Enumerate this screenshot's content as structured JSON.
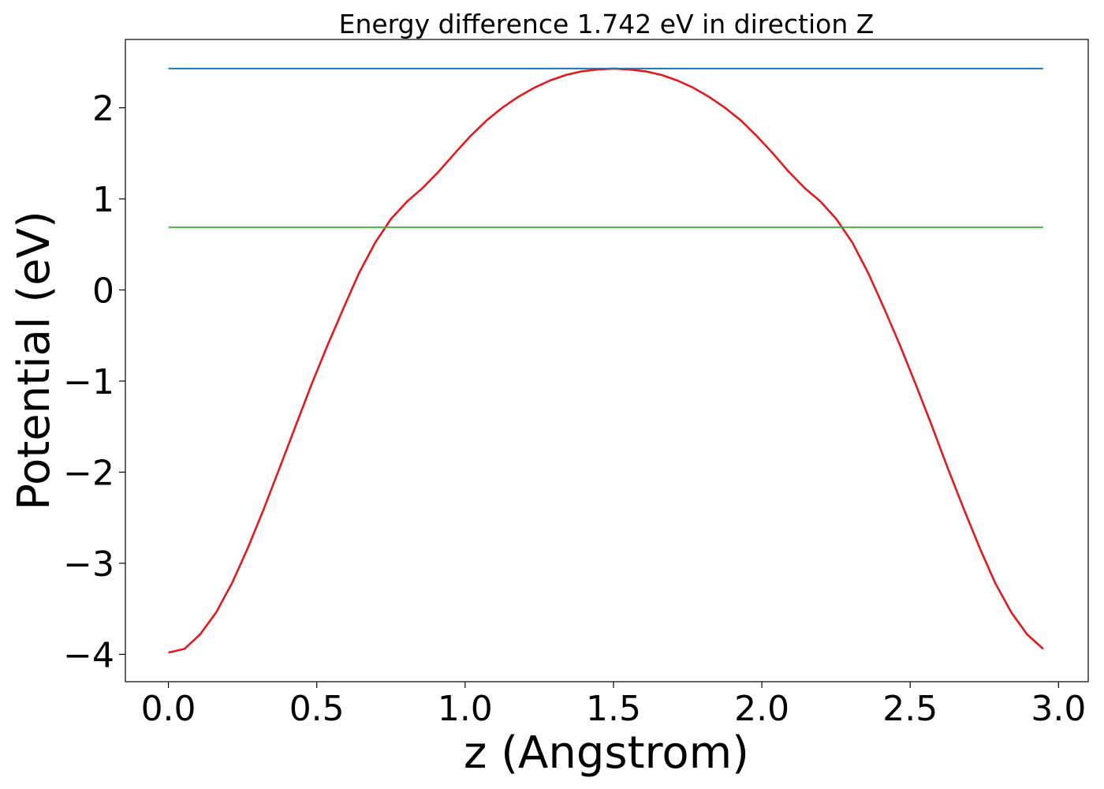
{
  "chart_data": {
    "type": "line",
    "title": "Energy difference 1.742 eV in direction Z",
    "xlabel": "z (Angstrom)",
    "ylabel": "Potential (eV)",
    "xlim": [
      -0.145,
      3.1
    ],
    "ylim": [
      -4.3,
      2.75
    ],
    "xticks": [
      0.0,
      0.5,
      1.0,
      1.5,
      2.0,
      2.5,
      3.0
    ],
    "xtick_labels": [
      "0.0",
      "0.5",
      "1.0",
      "1.5",
      "2.0",
      "2.5",
      "3.0"
    ],
    "yticks": [
      -4,
      -3,
      -2,
      -1,
      0,
      1,
      2
    ],
    "ytick_labels": [
      "−4",
      "−3",
      "−2",
      "−1",
      "0",
      "1",
      "2"
    ],
    "grid": false,
    "series": [
      {
        "color": "#e31a1c",
        "x": [
          0.0,
          0.054,
          0.107,
          0.161,
          0.214,
          0.268,
          0.322,
          0.375,
          0.429,
          0.482,
          0.536,
          0.59,
          0.643,
          0.697,
          0.75,
          0.804,
          0.857,
          0.911,
          0.965,
          1.018,
          1.072,
          1.125,
          1.179,
          1.233,
          1.286,
          1.34,
          1.393,
          1.447,
          1.501,
          1.554,
          1.608,
          1.662,
          1.715,
          1.769,
          1.822,
          1.876,
          1.93,
          1.983,
          2.037,
          2.09,
          2.144,
          2.198,
          2.251,
          2.305,
          2.358,
          2.412,
          2.466,
          2.519,
          2.573,
          2.626,
          2.68,
          2.734,
          2.787,
          2.841,
          2.894,
          2.948
        ],
        "y": [
          -3.98,
          -3.94,
          -3.78,
          -3.54,
          -3.22,
          -2.83,
          -2.4,
          -1.95,
          -1.49,
          -1.04,
          -0.61,
          -0.2,
          0.19,
          0.52,
          0.78,
          0.97,
          1.12,
          1.3,
          1.5,
          1.69,
          1.86,
          2.0,
          2.12,
          2.22,
          2.3,
          2.36,
          2.4,
          2.42,
          2.43,
          2.42,
          2.4,
          2.36,
          2.3,
          2.22,
          2.12,
          2.0,
          1.86,
          1.69,
          1.5,
          1.3,
          1.12,
          0.97,
          0.78,
          0.52,
          0.19,
          -0.2,
          -0.61,
          -1.04,
          -1.49,
          -1.95,
          -2.4,
          -2.83,
          -3.22,
          -3.54,
          -3.78,
          -3.94
        ]
      },
      {
        "color": "#1f77b4",
        "x": [
          0.0,
          2.948
        ],
        "y": [
          2.43,
          2.43
        ]
      },
      {
        "color": "#4daf4a",
        "x": [
          0.0,
          2.948
        ],
        "y": [
          0.688,
          0.688
        ]
      }
    ]
  }
}
